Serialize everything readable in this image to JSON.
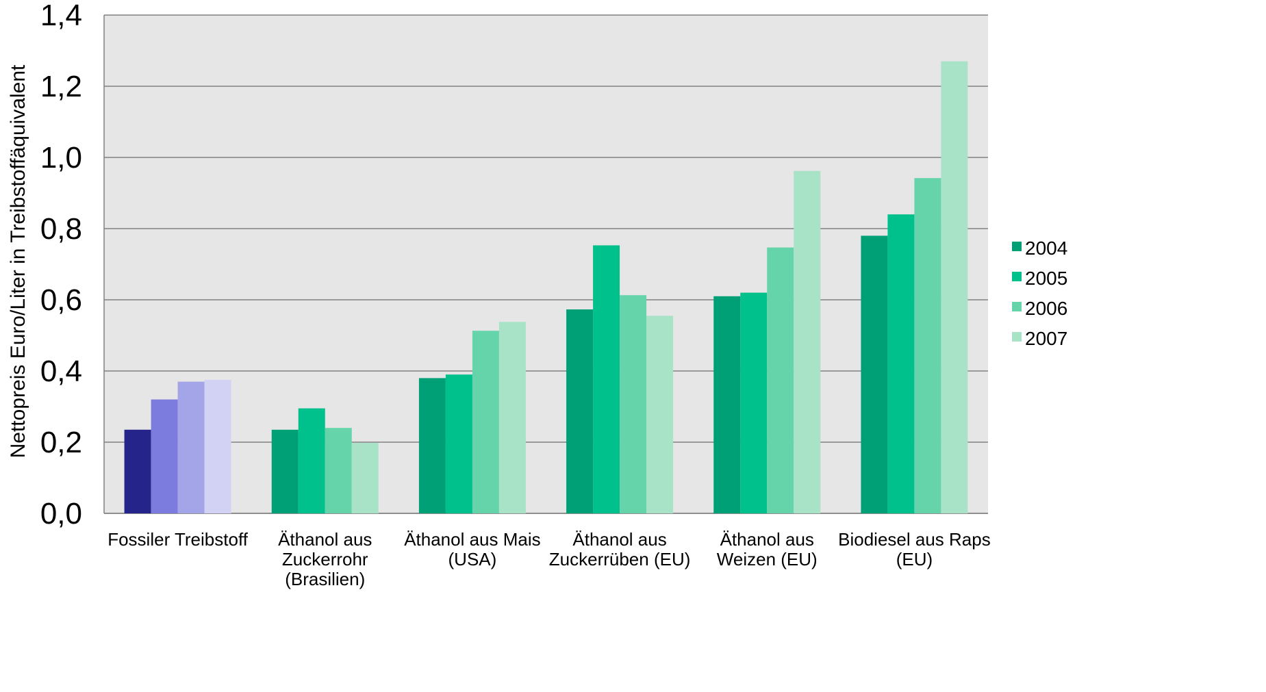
{
  "chart_data": {
    "type": "bar",
    "ylabel": "Nettopreis Euro/Liter in Treibstoffäquivalent",
    "ylim": [
      0,
      1.4
    ],
    "yticks": [
      "0,0",
      "0,2",
      "0,4",
      "0,6",
      "0,8",
      "1,0",
      "1,2",
      "1,4"
    ],
    "grid": true,
    "legend_position": "right",
    "categories": [
      [
        "Fossiler Treibstoff"
      ],
      [
        "Äthanol aus",
        "Zuckerrohr",
        "(Brasilien)"
      ],
      [
        "Äthanol aus Mais",
        "(USA)"
      ],
      [
        "Äthanol aus",
        "Zuckerrüben (EU)"
      ],
      [
        "Äthanol aus",
        "Weizen (EU)"
      ],
      [
        "Biodiesel aus Raps",
        "(EU)"
      ]
    ],
    "series": [
      {
        "name": "2004",
        "values": [
          0.235,
          0.235,
          0.38,
          0.573,
          0.61,
          0.78
        ]
      },
      {
        "name": "2005",
        "values": [
          0.32,
          0.295,
          0.39,
          0.753,
          0.62,
          0.84
        ]
      },
      {
        "name": "2006",
        "values": [
          0.37,
          0.24,
          0.513,
          0.613,
          0.747,
          0.942
        ]
      },
      {
        "name": "2007",
        "values": [
          0.375,
          0.198,
          0.538,
          0.555,
          0.962,
          1.27
        ]
      }
    ],
    "colors": {
      "series": [
        "#00a077",
        "#00c08c",
        "#66d4aa",
        "#a8e3c8"
      ],
      "fossil": [
        "#25248a",
        "#7c7cde",
        "#a4a4e8",
        "#d2d2f4"
      ],
      "plot_background": "#e6e6e6",
      "grid": "#808080"
    }
  }
}
